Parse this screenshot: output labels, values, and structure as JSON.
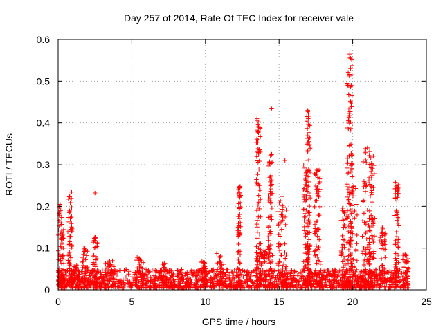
{
  "chart_data": {
    "type": "scatter",
    "title": "Day 257 of 2014, Rate Of TEC Index for receiver vale",
    "xlabel": "GPS time / hours",
    "ylabel": "ROTI / TECUs",
    "xlim": [
      0,
      25
    ],
    "ylim": [
      0,
      0.6
    ],
    "xticks": [
      0,
      5,
      10,
      15,
      20,
      25
    ],
    "yticks": [
      0,
      0.1,
      0.2,
      0.3,
      0.4,
      0.5,
      0.6
    ],
    "x_tick_labels": [
      "0",
      "5",
      "10",
      "15",
      "20",
      "25"
    ],
    "y_tick_labels": [
      "0",
      "0.1",
      "0.2",
      "0.3",
      "0.4",
      "0.5",
      "0.6"
    ],
    "grid": true,
    "marker": "+",
    "color": "#ff0000",
    "x_extent": [
      0,
      23.8
    ],
    "background_level": [
      0.0,
      0.045
    ],
    "bursts": [
      {
        "x": 0.1,
        "width": 0.15,
        "peak": 0.21
      },
      {
        "x": 0.3,
        "width": 0.1,
        "peak": 0.15
      },
      {
        "x": 0.8,
        "width": 0.15,
        "peak": 0.235
      },
      {
        "x": 1.2,
        "width": 0.3,
        "peak": 0.06
      },
      {
        "x": 1.8,
        "width": 0.2,
        "peak": 0.1
      },
      {
        "x": 2.5,
        "width": 0.15,
        "peak": 0.13
      },
      {
        "x": 3.5,
        "width": 0.3,
        "peak": 0.07
      },
      {
        "x": 5.5,
        "width": 0.3,
        "peak": 0.08
      },
      {
        "x": 7.2,
        "width": 0.2,
        "peak": 0.065
      },
      {
        "x": 9.9,
        "width": 0.2,
        "peak": 0.07
      },
      {
        "x": 11.0,
        "width": 0.3,
        "peak": 0.09
      },
      {
        "x": 12.3,
        "width": 0.1,
        "peak": 0.25
      },
      {
        "x": 13.6,
        "width": 0.15,
        "peak": 0.41
      },
      {
        "x": 14.0,
        "width": 0.3,
        "peak": 0.1
      },
      {
        "x": 14.4,
        "width": 0.15,
        "peak": 0.325
      },
      {
        "x": 15.2,
        "width": 0.3,
        "peak": 0.225
      },
      {
        "x": 16.8,
        "width": 0.15,
        "peak": 0.3
      },
      {
        "x": 17.0,
        "width": 0.12,
        "peak": 0.43
      },
      {
        "x": 17.6,
        "width": 0.2,
        "peak": 0.3
      },
      {
        "x": 19.4,
        "width": 0.2,
        "peak": 0.2
      },
      {
        "x": 19.8,
        "width": 0.2,
        "peak": 0.565
      },
      {
        "x": 20.0,
        "width": 0.3,
        "peak": 0.25
      },
      {
        "x": 20.9,
        "width": 0.25,
        "peak": 0.34
      },
      {
        "x": 21.3,
        "width": 0.2,
        "peak": 0.32
      },
      {
        "x": 22.0,
        "width": 0.2,
        "peak": 0.15
      },
      {
        "x": 23.0,
        "width": 0.15,
        "peak": 0.255
      },
      {
        "x": 23.6,
        "width": 0.2,
        "peak": 0.09
      }
    ],
    "notable_points": [
      {
        "x": 2.5,
        "y": 0.232
      },
      {
        "x": 13.5,
        "y": 0.41
      },
      {
        "x": 13.5,
        "y": 0.33
      },
      {
        "x": 13.5,
        "y": 0.255
      },
      {
        "x": 14.5,
        "y": 0.435
      },
      {
        "x": 14.5,
        "y": 0.325
      },
      {
        "x": 15.4,
        "y": 0.31
      },
      {
        "x": 16.95,
        "y": 0.43
      },
      {
        "x": 17.05,
        "y": 0.365
      },
      {
        "x": 19.8,
        "y": 0.565
      },
      {
        "x": 19.85,
        "y": 0.53
      },
      {
        "x": 19.9,
        "y": 0.49
      },
      {
        "x": 21.0,
        "y": 0.34
      },
      {
        "x": 21.4,
        "y": 0.32
      },
      {
        "x": 22.9,
        "y": 0.258
      }
    ]
  }
}
